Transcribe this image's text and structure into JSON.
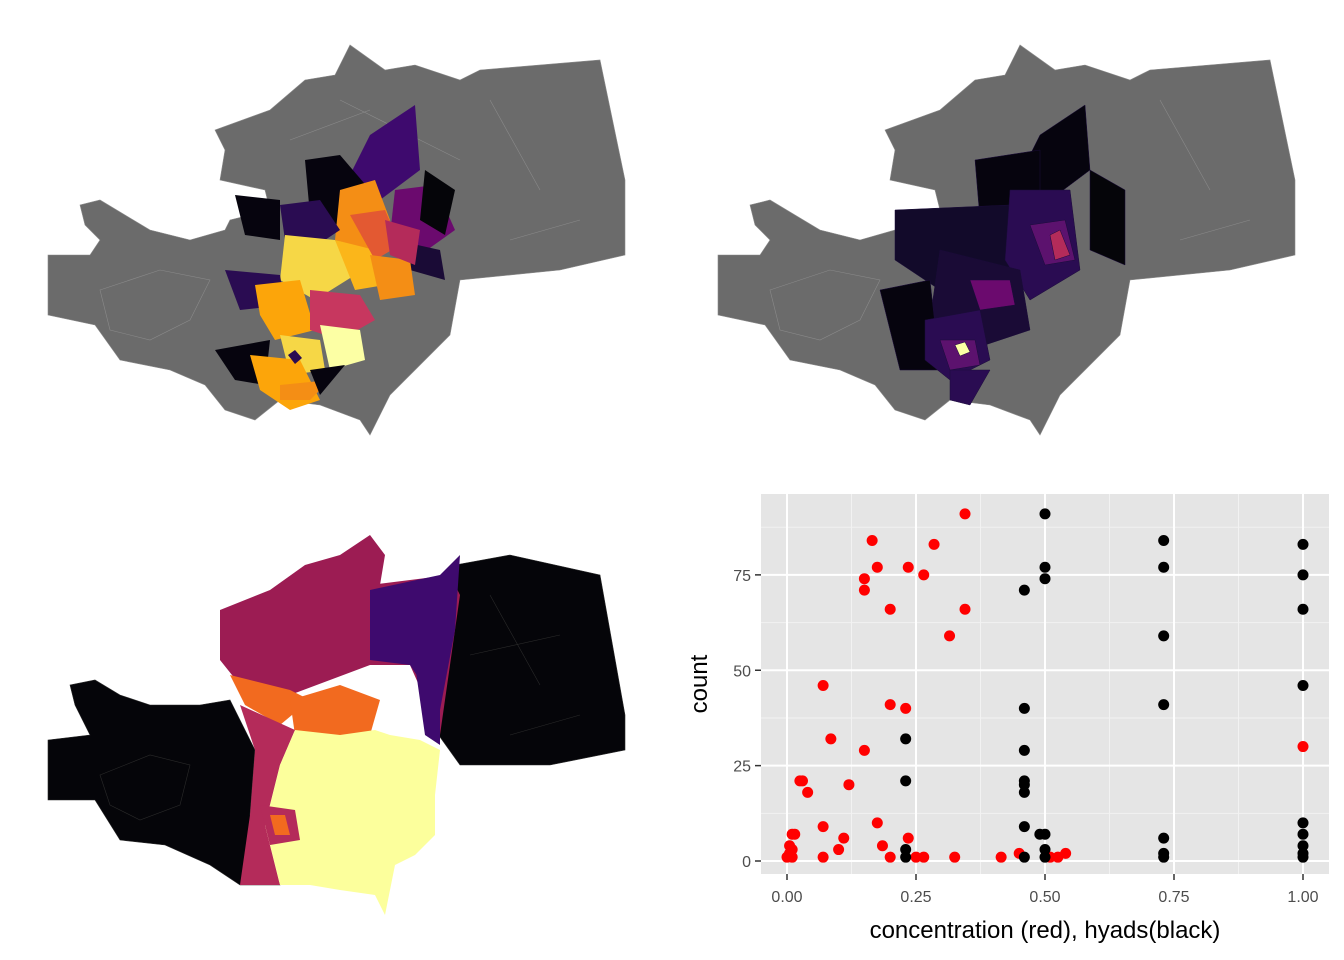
{
  "panels": {
    "map_panels": [
      {
        "name": "map-top-left",
        "palette": "inferno",
        "base_color": "#6b6b6b"
      },
      {
        "name": "map-top-right",
        "palette": "inferno",
        "base_color": "#6b6b6b"
      },
      {
        "name": "map-bottom-left",
        "palette": "inferno",
        "base_color": "#050509"
      }
    ]
  },
  "chart_data": {
    "type": "scatter",
    "title": "",
    "xlabel": "concentration (red), hyads(black)",
    "ylabel": "count",
    "xlim": [
      0,
      1
    ],
    "ylim": [
      0,
      92
    ],
    "x_ticks": [
      0.0,
      0.25,
      0.5,
      0.75,
      1.0
    ],
    "x_tick_labels": [
      "0.00",
      "0.25",
      "0.50",
      "0.75",
      "1.00"
    ],
    "y_ticks": [
      0,
      25,
      50,
      75
    ],
    "y_tick_labels": [
      "0",
      "25",
      "50",
      "75"
    ],
    "grid": true,
    "panel_background": "#e5e5e5",
    "series": [
      {
        "color": "#ff0000",
        "points": [
          [
            0.345,
            91
          ],
          [
            0.165,
            84
          ],
          [
            0.285,
            83
          ],
          [
            0.175,
            77
          ],
          [
            0.235,
            77
          ],
          [
            0.265,
            75
          ],
          [
            0.15,
            74
          ],
          [
            0.15,
            71
          ],
          [
            0.2,
            66
          ],
          [
            0.345,
            66
          ],
          [
            0.315,
            59
          ],
          [
            0.07,
            46
          ],
          [
            0.2,
            41
          ],
          [
            0.23,
            40
          ],
          [
            0.085,
            32
          ],
          [
            0.15,
            29
          ],
          [
            0.025,
            21
          ],
          [
            0.03,
            21
          ],
          [
            0.12,
            20
          ],
          [
            0.04,
            18
          ],
          [
            0.175,
            10
          ],
          [
            0.07,
            9
          ],
          [
            0.01,
            7
          ],
          [
            0.015,
            7
          ],
          [
            0.11,
            6
          ],
          [
            0.235,
            6
          ],
          [
            0.185,
            4
          ],
          [
            0.005,
            4
          ],
          [
            0.01,
            3
          ],
          [
            0.1,
            3
          ],
          [
            0.005,
            2
          ],
          [
            0.45,
            2
          ],
          [
            0.54,
            2
          ],
          [
            0.01,
            1
          ],
          [
            0.0,
            1
          ],
          [
            0.07,
            1
          ],
          [
            0.2,
            1
          ],
          [
            0.25,
            1
          ],
          [
            0.265,
            1
          ],
          [
            0.325,
            1
          ],
          [
            0.415,
            1
          ],
          [
            0.51,
            1
          ],
          [
            0.525,
            1
          ],
          [
            1.0,
            30
          ]
        ]
      },
      {
        "color": "#000000",
        "points": [
          [
            0.5,
            91
          ],
          [
            0.73,
            84
          ],
          [
            1.0,
            83
          ],
          [
            0.5,
            77
          ],
          [
            0.73,
            77
          ],
          [
            0.5,
            74
          ],
          [
            1.0,
            75
          ],
          [
            0.46,
            71
          ],
          [
            1.0,
            66
          ],
          [
            0.73,
            59
          ],
          [
            1.0,
            46
          ],
          [
            0.73,
            41
          ],
          [
            0.46,
            40
          ],
          [
            0.23,
            32
          ],
          [
            0.46,
            29
          ],
          [
            0.23,
            21
          ],
          [
            0.46,
            21
          ],
          [
            0.46,
            20
          ],
          [
            0.46,
            18
          ],
          [
            1.0,
            10
          ],
          [
            0.46,
            9
          ],
          [
            0.49,
            7
          ],
          [
            0.5,
            7
          ],
          [
            1.0,
            7
          ],
          [
            0.73,
            6
          ],
          [
            1.0,
            4
          ],
          [
            0.23,
            3
          ],
          [
            0.5,
            3
          ],
          [
            1.0,
            2
          ],
          [
            0.73,
            2
          ],
          [
            0.46,
            1
          ],
          [
            0.23,
            1
          ],
          [
            0.5,
            1
          ],
          [
            0.73,
            1
          ],
          [
            1.0,
            1
          ]
        ]
      }
    ]
  }
}
